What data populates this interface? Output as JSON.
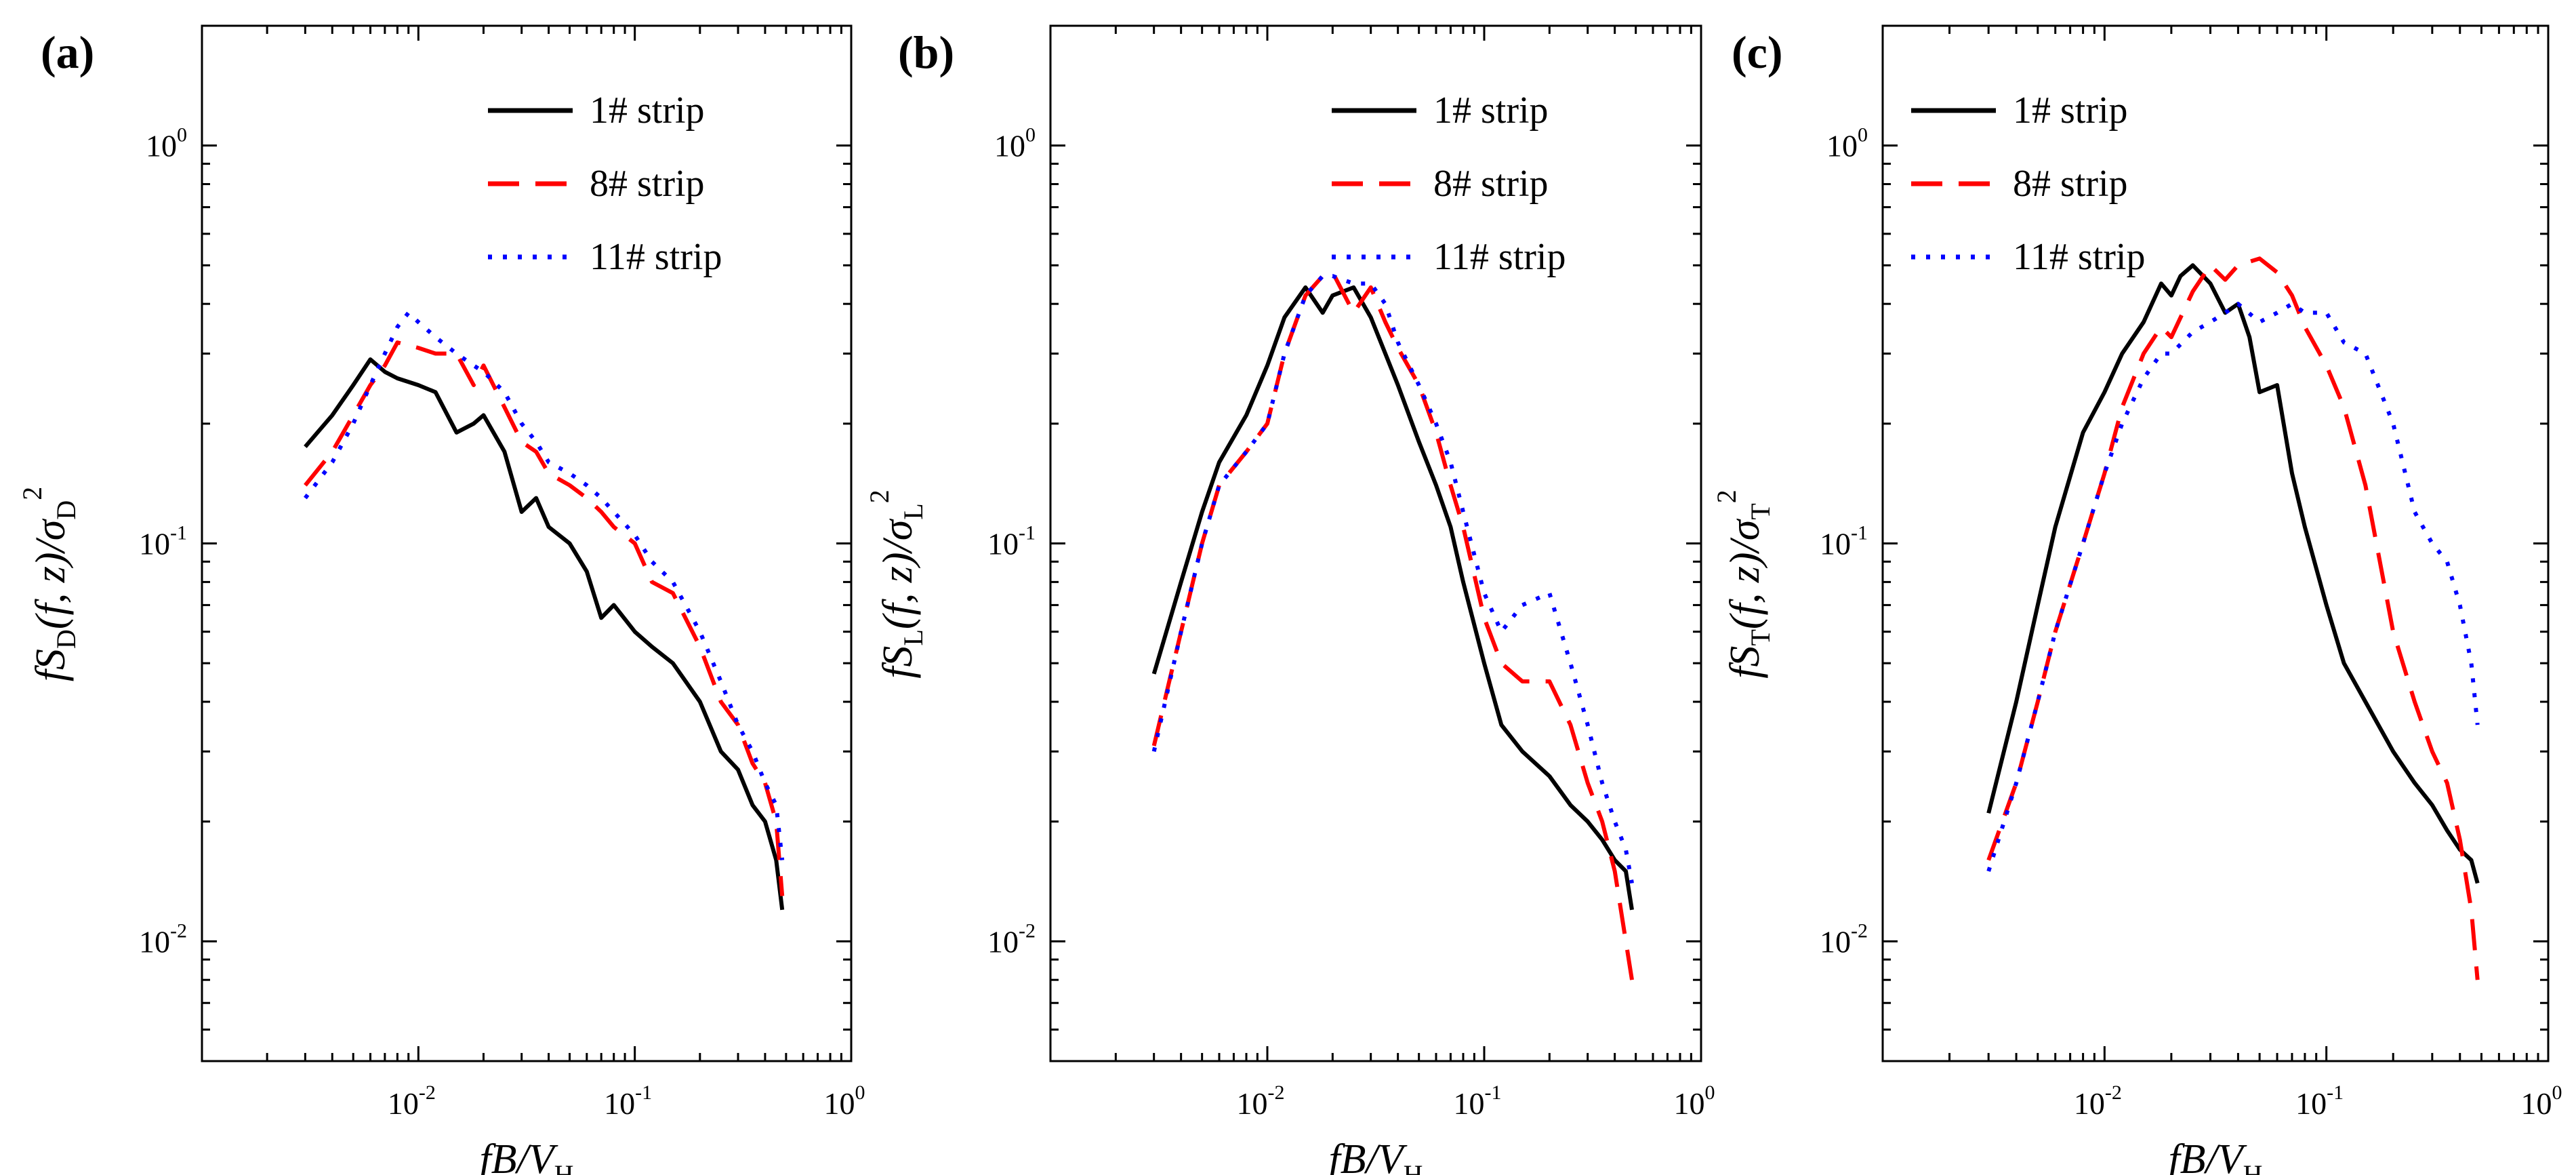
{
  "chart_data": [
    {
      "type": "line",
      "panel_label": "(a)",
      "xscale": "log",
      "yscale": "log",
      "xlim": [
        0.001,
        1
      ],
      "ylim": [
        0.005,
        2
      ],
      "x_ticks": [
        {
          "base": "10",
          "exp": "-2",
          "value": 0.01
        },
        {
          "base": "10",
          "exp": "-1",
          "value": 0.1
        },
        {
          "base": "10",
          "exp": "0",
          "value": 1
        }
      ],
      "y_ticks": [
        {
          "base": "10",
          "exp": "-2",
          "value": 0.01
        },
        {
          "base": "10",
          "exp": "-1",
          "value": 0.1
        },
        {
          "base": "10",
          "exp": "0",
          "value": 1
        }
      ],
      "xlabel": {
        "prefix": "fB/V",
        "sub": "H"
      },
      "ylabel": {
        "main": "fS",
        "sub1": "D",
        "mid": "(f, z)/σ",
        "sub2": "D",
        "sup": "2"
      },
      "legend_position": "top-right",
      "series": [
        {
          "name": "1# strip",
          "color": "#000000",
          "dash": "solid",
          "x": [
            0.003,
            0.004,
            0.005,
            0.006,
            0.007,
            0.008,
            0.01,
            0.012,
            0.015,
            0.018,
            0.02,
            0.025,
            0.03,
            0.035,
            0.04,
            0.05,
            0.06,
            0.07,
            0.08,
            0.1,
            0.12,
            0.15,
            0.2,
            0.25,
            0.3,
            0.35,
            0.4,
            0.45,
            0.48
          ],
          "y": [
            0.175,
            0.21,
            0.25,
            0.29,
            0.27,
            0.26,
            0.25,
            0.24,
            0.19,
            0.2,
            0.21,
            0.17,
            0.12,
            0.13,
            0.11,
            0.1,
            0.085,
            0.065,
            0.07,
            0.06,
            0.055,
            0.05,
            0.04,
            0.03,
            0.027,
            0.022,
            0.02,
            0.016,
            0.012
          ]
        },
        {
          "name": "8# strip",
          "color": "#ff0000",
          "dash": "long-dash",
          "x": [
            0.003,
            0.004,
            0.005,
            0.006,
            0.007,
            0.008,
            0.01,
            0.012,
            0.015,
            0.018,
            0.02,
            0.025,
            0.03,
            0.035,
            0.04,
            0.05,
            0.06,
            0.07,
            0.08,
            0.1,
            0.12,
            0.15,
            0.2,
            0.25,
            0.3,
            0.35,
            0.4,
            0.45,
            0.48
          ],
          "y": [
            0.14,
            0.17,
            0.21,
            0.25,
            0.28,
            0.32,
            0.31,
            0.3,
            0.3,
            0.25,
            0.28,
            0.22,
            0.18,
            0.17,
            0.15,
            0.14,
            0.13,
            0.12,
            0.11,
            0.1,
            0.08,
            0.075,
            0.055,
            0.04,
            0.035,
            0.028,
            0.025,
            0.02,
            0.013
          ]
        },
        {
          "name": "11# strip",
          "color": "#0000ff",
          "dash": "dotted",
          "x": [
            0.003,
            0.004,
            0.005,
            0.006,
            0.007,
            0.008,
            0.009,
            0.01,
            0.012,
            0.015,
            0.018,
            0.02,
            0.025,
            0.03,
            0.035,
            0.04,
            0.05,
            0.06,
            0.07,
            0.08,
            0.1,
            0.12,
            0.15,
            0.2,
            0.25,
            0.3,
            0.35,
            0.4,
            0.45,
            0.48
          ],
          "y": [
            0.13,
            0.16,
            0.2,
            0.25,
            0.3,
            0.35,
            0.38,
            0.36,
            0.33,
            0.3,
            0.28,
            0.27,
            0.24,
            0.2,
            0.18,
            0.16,
            0.15,
            0.14,
            0.13,
            0.12,
            0.105,
            0.09,
            0.08,
            0.06,
            0.045,
            0.035,
            0.03,
            0.025,
            0.022,
            0.016
          ]
        }
      ]
    },
    {
      "type": "line",
      "panel_label": "(b)",
      "xscale": "log",
      "yscale": "log",
      "xlim": [
        0.001,
        1
      ],
      "ylim": [
        0.005,
        2
      ],
      "x_ticks": [
        {
          "base": "10",
          "exp": "-2",
          "value": 0.01
        },
        {
          "base": "10",
          "exp": "-1",
          "value": 0.1
        },
        {
          "base": "10",
          "exp": "0",
          "value": 1
        }
      ],
      "y_ticks": [
        {
          "base": "10",
          "exp": "-2",
          "value": 0.01
        },
        {
          "base": "10",
          "exp": "-1",
          "value": 0.1
        },
        {
          "base": "10",
          "exp": "0",
          "value": 1
        }
      ],
      "xlabel": {
        "prefix": "fB/V",
        "sub": "H"
      },
      "ylabel": {
        "main": "fS",
        "sub1": "L",
        "mid": "(f, z)/σ",
        "sub2": "L",
        "sup": "2"
      },
      "legend_position": "top-right",
      "series": [
        {
          "name": "1# strip",
          "color": "#000000",
          "dash": "solid",
          "x": [
            0.003,
            0.004,
            0.005,
            0.006,
            0.008,
            0.01,
            0.012,
            0.015,
            0.018,
            0.02,
            0.025,
            0.03,
            0.035,
            0.04,
            0.05,
            0.06,
            0.07,
            0.08,
            0.1,
            0.12,
            0.15,
            0.2,
            0.25,
            0.3,
            0.35,
            0.4,
            0.45,
            0.48
          ],
          "y": [
            0.047,
            0.08,
            0.12,
            0.16,
            0.21,
            0.28,
            0.37,
            0.44,
            0.38,
            0.42,
            0.44,
            0.37,
            0.3,
            0.25,
            0.18,
            0.14,
            0.11,
            0.08,
            0.05,
            0.035,
            0.03,
            0.026,
            0.022,
            0.02,
            0.018,
            0.016,
            0.015,
            0.012
          ]
        },
        {
          "name": "8# strip",
          "color": "#ff0000",
          "dash": "long-dash",
          "x": [
            0.003,
            0.004,
            0.005,
            0.006,
            0.008,
            0.01,
            0.012,
            0.015,
            0.018,
            0.02,
            0.025,
            0.03,
            0.035,
            0.04,
            0.05,
            0.06,
            0.07,
            0.08,
            0.1,
            0.12,
            0.15,
            0.2,
            0.25,
            0.3,
            0.35,
            0.4,
            0.45,
            0.48
          ],
          "y": [
            0.031,
            0.06,
            0.1,
            0.14,
            0.17,
            0.2,
            0.3,
            0.42,
            0.47,
            0.48,
            0.38,
            0.44,
            0.36,
            0.31,
            0.25,
            0.19,
            0.14,
            0.11,
            0.065,
            0.05,
            0.045,
            0.045,
            0.035,
            0.025,
            0.02,
            0.015,
            0.01,
            0.008
          ]
        },
        {
          "name": "11# strip",
          "color": "#0000ff",
          "dash": "dotted",
          "x": [
            0.003,
            0.004,
            0.005,
            0.006,
            0.008,
            0.01,
            0.012,
            0.015,
            0.018,
            0.02,
            0.025,
            0.03,
            0.035,
            0.04,
            0.05,
            0.06,
            0.07,
            0.08,
            0.1,
            0.12,
            0.15,
            0.2,
            0.25,
            0.3,
            0.35,
            0.4,
            0.45,
            0.48
          ],
          "y": [
            0.03,
            0.06,
            0.1,
            0.14,
            0.17,
            0.2,
            0.3,
            0.42,
            0.47,
            0.47,
            0.45,
            0.45,
            0.4,
            0.32,
            0.25,
            0.2,
            0.16,
            0.12,
            0.075,
            0.06,
            0.07,
            0.075,
            0.05,
            0.035,
            0.025,
            0.02,
            0.017,
            0.014
          ]
        }
      ]
    },
    {
      "type": "line",
      "panel_label": "(c)",
      "xscale": "log",
      "yscale": "log",
      "xlim": [
        0.001,
        1
      ],
      "ylim": [
        0.005,
        2
      ],
      "x_ticks": [
        {
          "base": "10",
          "exp": "-2",
          "value": 0.01
        },
        {
          "base": "10",
          "exp": "-1",
          "value": 0.1
        },
        {
          "base": "10",
          "exp": "0",
          "value": 1
        }
      ],
      "y_ticks": [
        {
          "base": "10",
          "exp": "-2",
          "value": 0.01
        },
        {
          "base": "10",
          "exp": "-1",
          "value": 0.1
        },
        {
          "base": "10",
          "exp": "0",
          "value": 1
        }
      ],
      "xlabel": {
        "prefix": "fB/V",
        "sub": "H"
      },
      "ylabel": {
        "main": "fS",
        "sub1": "T",
        "mid": "(f, z)/σ",
        "sub2": "T",
        "sup": "2"
      },
      "legend_position": "top-left",
      "series": [
        {
          "name": "1# strip",
          "color": "#000000",
          "dash": "solid",
          "x": [
            0.003,
            0.004,
            0.005,
            0.006,
            0.008,
            0.01,
            0.012,
            0.015,
            0.018,
            0.02,
            0.022,
            0.025,
            0.03,
            0.035,
            0.04,
            0.045,
            0.05,
            0.06,
            0.07,
            0.08,
            0.1,
            0.12,
            0.15,
            0.2,
            0.25,
            0.3,
            0.35,
            0.4,
            0.45,
            0.48
          ],
          "y": [
            0.021,
            0.04,
            0.07,
            0.11,
            0.19,
            0.24,
            0.3,
            0.36,
            0.45,
            0.42,
            0.47,
            0.5,
            0.45,
            0.38,
            0.4,
            0.33,
            0.24,
            0.25,
            0.15,
            0.11,
            0.07,
            0.05,
            0.04,
            0.03,
            0.025,
            0.022,
            0.019,
            0.017,
            0.016,
            0.014
          ]
        },
        {
          "name": "8# strip",
          "color": "#ff0000",
          "dash": "long-dash",
          "x": [
            0.003,
            0.004,
            0.005,
            0.006,
            0.008,
            0.01,
            0.012,
            0.015,
            0.018,
            0.02,
            0.025,
            0.03,
            0.035,
            0.04,
            0.05,
            0.06,
            0.07,
            0.08,
            0.1,
            0.12,
            0.15,
            0.2,
            0.25,
            0.3,
            0.35,
            0.4,
            0.45,
            0.48
          ],
          "y": [
            0.016,
            0.025,
            0.04,
            0.06,
            0.1,
            0.15,
            0.22,
            0.3,
            0.35,
            0.33,
            0.43,
            0.5,
            0.46,
            0.5,
            0.52,
            0.48,
            0.42,
            0.35,
            0.28,
            0.22,
            0.14,
            0.06,
            0.04,
            0.03,
            0.025,
            0.018,
            0.012,
            0.008
          ]
        },
        {
          "name": "11# strip",
          "color": "#0000ff",
          "dash": "dotted",
          "x": [
            0.003,
            0.004,
            0.005,
            0.006,
            0.008,
            0.01,
            0.012,
            0.015,
            0.018,
            0.02,
            0.025,
            0.03,
            0.035,
            0.04,
            0.05,
            0.06,
            0.07,
            0.08,
            0.1,
            0.12,
            0.15,
            0.2,
            0.25,
            0.3,
            0.35,
            0.4,
            0.45,
            0.48
          ],
          "y": [
            0.015,
            0.025,
            0.04,
            0.06,
            0.1,
            0.15,
            0.2,
            0.26,
            0.3,
            0.3,
            0.34,
            0.36,
            0.38,
            0.4,
            0.36,
            0.38,
            0.4,
            0.38,
            0.38,
            0.32,
            0.3,
            0.2,
            0.12,
            0.1,
            0.09,
            0.07,
            0.05,
            0.035
          ]
        }
      ]
    }
  ]
}
